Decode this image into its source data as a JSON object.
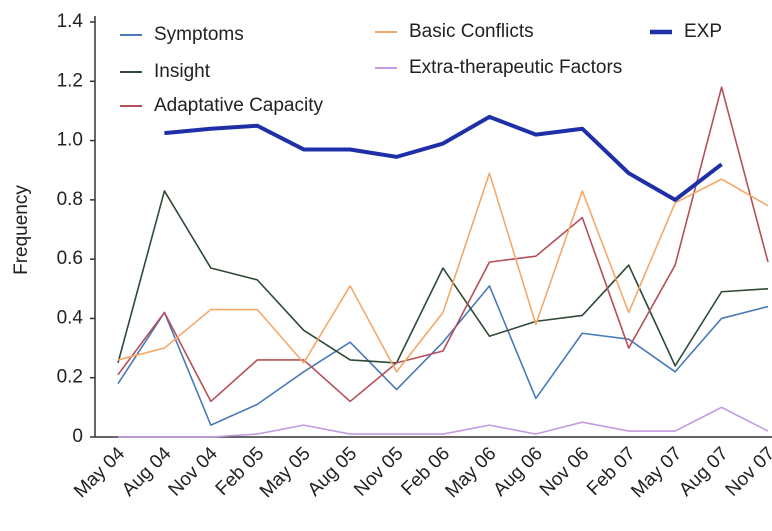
{
  "chart_data": {
    "type": "line",
    "y_label": "Frequency",
    "categories": [
      "May 04",
      "Aug 04",
      "Nov 04",
      "Feb 05",
      "May 05",
      "Aug 05",
      "Nov 05",
      "Feb 06",
      "May 06",
      "Aug 06",
      "Nov 06",
      "Feb 07",
      "May 07",
      "Aug 07",
      "Nov 07"
    ],
    "ylim": [
      0,
      1.4
    ],
    "yticks": [
      0,
      0.2,
      0.4,
      0.6,
      0.8,
      {
        "value": 1,
        "label": "1.0"
      },
      1.2,
      1.4
    ],
    "grid": false,
    "series": [
      {
        "name": "Symptoms",
        "color": "#4a7ab8",
        "values": [
          0.18,
          0.42,
          0.04,
          0.11,
          0.22,
          0.32,
          0.16,
          0.32,
          0.51,
          0.13,
          0.35,
          0.33,
          0.22,
          0.4,
          0.44
        ]
      },
      {
        "name": "Insight",
        "color": "#2f4a35",
        "values": [
          0.25,
          0.83,
          0.57,
          0.53,
          0.36,
          0.26,
          0.25,
          0.57,
          0.34,
          0.39,
          0.41,
          0.58,
          0.24,
          0.49,
          0.5
        ]
      },
      {
        "name": "Adaptative Capacity",
        "color": "#b5505a",
        "values": [
          0.21,
          0.42,
          0.12,
          0.26,
          0.26,
          0.12,
          0.25,
          0.29,
          0.59,
          0.61,
          0.74,
          0.3,
          0.58,
          1.18,
          0.59
        ]
      },
      {
        "name": "Basic Conflicts",
        "color": "#f5a86a",
        "values": [
          0.26,
          0.3,
          0.43,
          0.43,
          0.25,
          0.51,
          0.22,
          0.42,
          0.89,
          0.38,
          0.83,
          0.42,
          0.79,
          0.87,
          0.78
        ]
      },
      {
        "name": "Extra-therapeutic Factors",
        "color": "#c49be0",
        "values": [
          0.0,
          0.0,
          0.0,
          0.01,
          0.04,
          0.01,
          0.01,
          0.01,
          0.04,
          0.01,
          0.05,
          0.02,
          0.02,
          0.1,
          0.02
        ]
      },
      {
        "name": "EXP",
        "color": "#1f2fa8",
        "values": [
          null,
          1.025,
          1.04,
          1.05,
          0.97,
          0.97,
          0.945,
          0.99,
          1.08,
          1.02,
          1.04,
          0.89,
          0.8,
          0.92,
          null
        ]
      }
    ]
  }
}
